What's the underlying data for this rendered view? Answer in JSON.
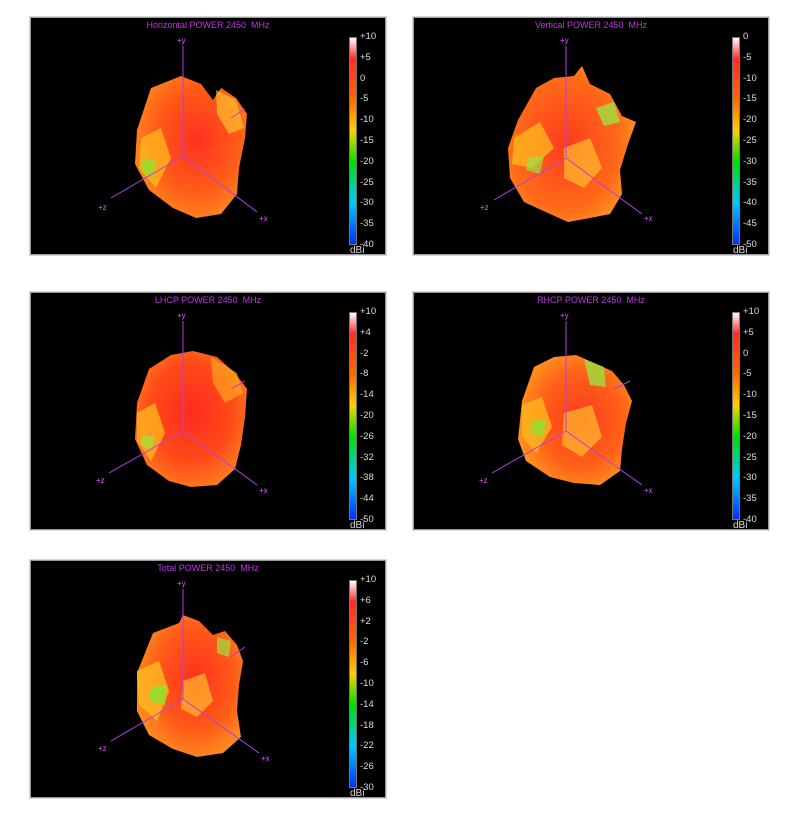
{
  "panels": [
    {
      "title": "Horizontal POWER 2450  MHz",
      "scale_ticks": [
        "+10",
        "+5",
        "0",
        "-5",
        "-10",
        "-15",
        "-20",
        "-25",
        "-30",
        "-35",
        "-40"
      ],
      "unit": "dBi",
      "axis_labels": {
        "y": "+y",
        "z": "+z",
        "x": "+x"
      }
    },
    {
      "title": "Vertical POWER 2450  MHz",
      "scale_ticks": [
        "0",
        "-5",
        "-10",
        "-15",
        "-20",
        "-25",
        "-30",
        "-35",
        "-40",
        "-45",
        "-50"
      ],
      "unit": "dBi",
      "axis_labels": {
        "y": "+y",
        "z": "+z",
        "x": "+x"
      }
    },
    {
      "title": "LHCP POWER 2450  MHz",
      "scale_ticks": [
        "+10",
        "+4",
        "-2",
        "-8",
        "-14",
        "-20",
        "-26",
        "-32",
        "-38",
        "-44",
        "-50"
      ],
      "unit": "dBi",
      "axis_labels": {
        "y": "+y",
        "z": "+z",
        "x": "+x"
      }
    },
    {
      "title": "RHCP POWER 2450  MHz",
      "scale_ticks": [
        "+10",
        "+5",
        "0",
        "-5",
        "-10",
        "-15",
        "-20",
        "-25",
        "-30",
        "-35",
        "-40"
      ],
      "unit": "dBi",
      "axis_labels": {
        "y": "+y",
        "z": "+z",
        "x": "+x"
      }
    },
    {
      "title": "Total POWER 2450  MHz",
      "scale_ticks": [
        "+10",
        "+6",
        "+2",
        "-2",
        "-6",
        "-10",
        "-14",
        "-18",
        "-22",
        "-26",
        "-30"
      ],
      "unit": "dBi",
      "axis_labels": {
        "y": "+y",
        "z": "+z",
        "x": "+x"
      }
    }
  ],
  "colors": {
    "title": "#c233e6",
    "axis": "#b040e0",
    "scale": [
      "#ffffff",
      "#ff2a2a",
      "#ff6a00",
      "#ffd000",
      "#00e000",
      "#00c8ff",
      "#0030ff"
    ]
  }
}
